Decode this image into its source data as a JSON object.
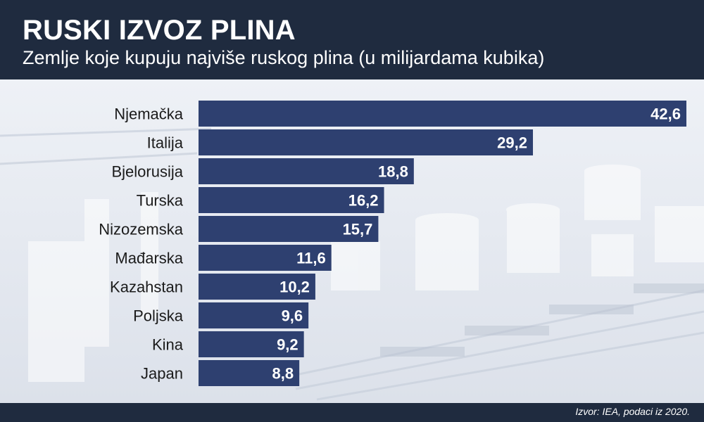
{
  "header": {
    "title": "RUSKI IZVOZ PLINA",
    "subtitle": "Zemlje koje kupuju najviše ruskog plina (u milijardama kubika)"
  },
  "footer": {
    "source": "Izvor: IEA, podaci iz 2020."
  },
  "colors": {
    "bar": "#2e4070",
    "header_bg": "#1f2b3f"
  },
  "chart_data": {
    "type": "bar",
    "orientation": "horizontal",
    "categories": [
      "Njemačka",
      "Italija",
      "Bjelorusija",
      "Turska",
      "Nizozemska",
      "Mađarska",
      "Kazahstan",
      "Poljska",
      "Kina",
      "Japan"
    ],
    "values": [
      42.6,
      29.2,
      18.8,
      16.2,
      15.7,
      11.6,
      10.2,
      9.6,
      9.2,
      8.8
    ],
    "value_labels": [
      "42,6",
      "29,2",
      "18,8",
      "16,2",
      "15,7",
      "11,6",
      "10,2",
      "9,6",
      "9,2",
      "8,8"
    ],
    "xlim": [
      0,
      42.6
    ],
    "grid": false,
    "legend": "none"
  }
}
